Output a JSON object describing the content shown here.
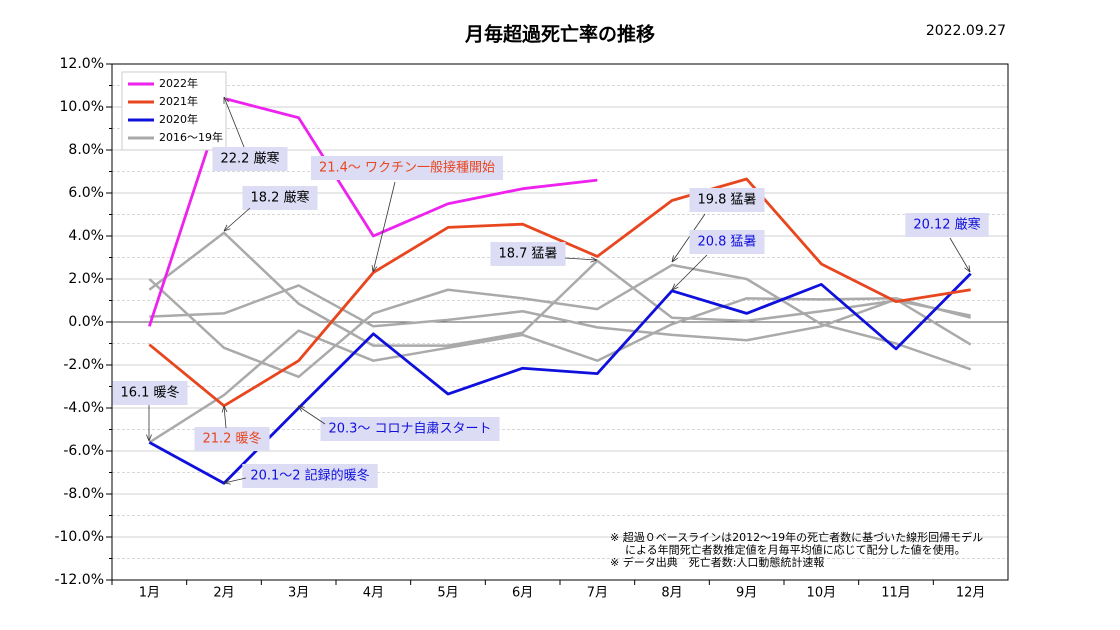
{
  "chart_data": {
    "type": "line",
    "title": "月毎超過死亡率の推移",
    "date": "2022.09.27",
    "categories": [
      "1月",
      "2月",
      "3月",
      "4月",
      "5月",
      "6月",
      "7月",
      "8月",
      "9月",
      "10月",
      "11月",
      "12月"
    ],
    "series": [
      {
        "name": "2022年",
        "color": "#ee22ee",
        "values": [
          -0.2,
          10.4,
          9.5,
          4.0,
          5.5,
          6.2,
          6.6,
          null,
          null,
          null,
          null,
          null
        ]
      },
      {
        "name": "2021年",
        "color": "#e8461e",
        "values": [
          -1.05,
          -3.9,
          -1.8,
          2.3,
          4.4,
          4.55,
          3.05,
          5.65,
          6.65,
          2.7,
          0.95,
          1.5
        ]
      },
      {
        "name": "2020年",
        "color": "#1010dd",
        "values": [
          -5.6,
          -7.5,
          -4.0,
          -0.55,
          -3.35,
          -2.15,
          -2.4,
          1.45,
          0.4,
          1.75,
          -1.25,
          2.25
        ]
      },
      {
        "name": "2016～19年",
        "color": "#aaaaaa",
        "values": [
          1.5,
          4.15,
          0.85,
          -1.1,
          -1.1,
          -0.5,
          2.85,
          0.2,
          0.05,
          0.5,
          1.0,
          0.3
        ]
      },
      {
        "color": "#aaaaaa",
        "values": [
          2.0,
          -1.2,
          -2.55,
          0.4,
          1.5,
          1.1,
          0.6,
          2.65,
          2.0,
          -0.1,
          -1.0,
          -2.2
        ]
      },
      {
        "color": "#aaaaaa",
        "values": [
          0.25,
          0.4,
          1.7,
          -0.2,
          0.1,
          0.5,
          -0.25,
          -0.6,
          -0.85,
          -0.2,
          1.05,
          -1.05
        ]
      },
      {
        "color": "#aaaaaa",
        "values": [
          -5.6,
          -3.4,
          -0.4,
          -1.8,
          -1.2,
          -0.6,
          -1.8,
          -0.1,
          1.1,
          1.05,
          1.1,
          0.2
        ]
      }
    ],
    "ylim": [
      -12,
      12
    ],
    "yticks": [
      {
        "value": -12,
        "label": "-12.0%"
      },
      {
        "value": -10,
        "label": "-10.0%"
      },
      {
        "value": -8,
        "label": "-8.0%"
      },
      {
        "value": -6,
        "label": "-6.0%"
      },
      {
        "value": -4,
        "label": "-4.0%"
      },
      {
        "value": -2,
        "label": "-2.0%"
      },
      {
        "value": 0,
        "label": "0.0%"
      },
      {
        "value": 2,
        "label": "2.0%"
      },
      {
        "value": 4,
        "label": "4.0%"
      },
      {
        "value": 6,
        "label": "6.0%"
      },
      {
        "value": 8,
        "label": "8.0%"
      },
      {
        "value": 10,
        "label": "10.0%"
      },
      {
        "value": 12,
        "label": "12.0%"
      }
    ],
    "yminorticks": [
      -11,
      -9,
      -7,
      -5,
      -3,
      -1,
      1,
      3,
      5,
      7,
      9,
      11
    ],
    "grid": true,
    "legend": "upper left",
    "annotations": [
      {
        "text": "22.2 厳寒",
        "color": "#000000"
      },
      {
        "text": "18.2 厳寒",
        "color": "#000000"
      },
      {
        "text": "21.4～ ワクチン一般接種開始",
        "color": "#e8461e"
      },
      {
        "text": "18.7 猛暑",
        "color": "#000000"
      },
      {
        "text": "19.8 猛暑",
        "color": "#000000"
      },
      {
        "text": "20.8 猛暑",
        "color": "#1010dd"
      },
      {
        "text": "20.12 厳寒",
        "color": "#1010dd"
      },
      {
        "text": "16.1 暖冬",
        "color": "#000000"
      },
      {
        "text": "21.2 暖冬",
        "color": "#e8461e"
      },
      {
        "text": "20.3～ コロナ自粛スタート",
        "color": "#1010dd"
      },
      {
        "text": "20.1～2 記録的暖冬",
        "color": "#1010dd"
      }
    ],
    "notes": [
      "※ 超過０ベースラインは2012～19年の死亡者数に基づいた線形回帰モデル",
      "による年間死亡者数推定値を月毎平均値に応じて配分した値を使用。",
      "※ データ出典　死亡者数:人口動態統計速報"
    ]
  }
}
